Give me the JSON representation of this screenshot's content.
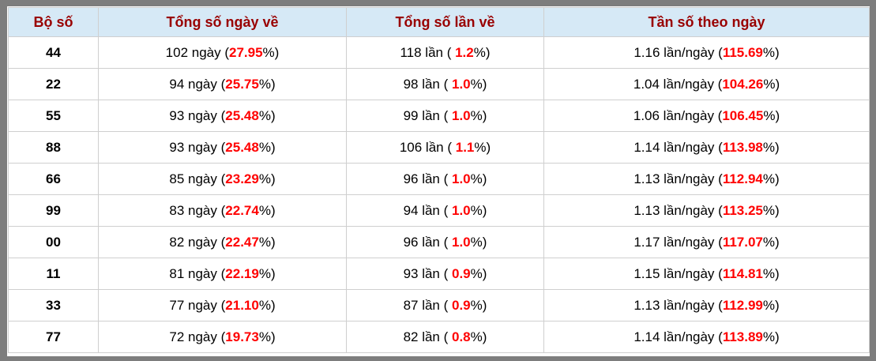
{
  "table": {
    "columns": [
      {
        "label": "Bộ số"
      },
      {
        "label": "Tổng số ngày về"
      },
      {
        "label": "Tổng số lần về"
      },
      {
        "label": "Tần số theo ngày"
      }
    ],
    "pct_suffix": "%)",
    "rows": [
      {
        "pair": "44",
        "days_prefix": "102 ngày (",
        "days_pct": "27.95",
        "times_prefix": "118 lần ( ",
        "times_pct": "1.2",
        "freq_prefix": "1.16 lần/ngày (",
        "freq_pct": "115.69"
      },
      {
        "pair": "22",
        "days_prefix": "94 ngày (",
        "days_pct": "25.75",
        "times_prefix": "98 lần ( ",
        "times_pct": "1.0",
        "freq_prefix": "1.04 lần/ngày (",
        "freq_pct": "104.26"
      },
      {
        "pair": "55",
        "days_prefix": "93 ngày (",
        "days_pct": "25.48",
        "times_prefix": "99 lần ( ",
        "times_pct": "1.0",
        "freq_prefix": "1.06 lần/ngày (",
        "freq_pct": "106.45"
      },
      {
        "pair": "88",
        "days_prefix": "93 ngày (",
        "days_pct": "25.48",
        "times_prefix": "106 lần ( ",
        "times_pct": "1.1",
        "freq_prefix": "1.14 lần/ngày (",
        "freq_pct": "113.98"
      },
      {
        "pair": "66",
        "days_prefix": "85 ngày (",
        "days_pct": "23.29",
        "times_prefix": "96 lần ( ",
        "times_pct": "1.0",
        "freq_prefix": "1.13 lần/ngày (",
        "freq_pct": "112.94"
      },
      {
        "pair": "99",
        "days_prefix": "83 ngày (",
        "days_pct": "22.74",
        "times_prefix": "94 lần ( ",
        "times_pct": "1.0",
        "freq_prefix": "1.13 lần/ngày (",
        "freq_pct": "113.25"
      },
      {
        "pair": "00",
        "days_prefix": "82 ngày (",
        "days_pct": "22.47",
        "times_prefix": "96 lần ( ",
        "times_pct": "1.0",
        "freq_prefix": "1.17 lần/ngày (",
        "freq_pct": "117.07"
      },
      {
        "pair": "11",
        "days_prefix": "81 ngày (",
        "days_pct": "22.19",
        "times_prefix": "93 lần ( ",
        "times_pct": "0.9",
        "freq_prefix": "1.15 lần/ngày (",
        "freq_pct": "114.81"
      },
      {
        "pair": "33",
        "days_prefix": "77 ngày (",
        "days_pct": "21.10",
        "times_prefix": "87 lần ( ",
        "times_pct": "0.9",
        "freq_prefix": "1.13 lần/ngày (",
        "freq_pct": "112.99"
      },
      {
        "pair": "77",
        "days_prefix": "72 ngày (",
        "days_pct": "19.73",
        "times_prefix": "82 lần ( ",
        "times_pct": "0.8",
        "freq_prefix": "1.14 lần/ngày (",
        "freq_pct": "113.89"
      }
    ]
  },
  "colors": {
    "frame_gray": "#7d7d7d",
    "header_bg": "#d6e9f6",
    "header_text": "#990000",
    "highlight_red": "#ff0000",
    "cell_border": "#cfcfcf"
  }
}
